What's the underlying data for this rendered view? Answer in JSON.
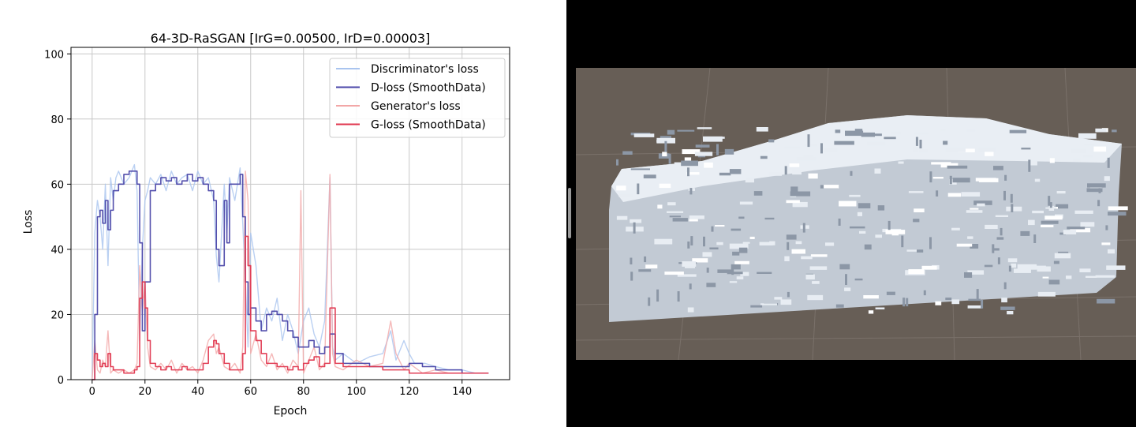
{
  "colors": {
    "discriminator_raw": "#a9c4ef",
    "discriminator_smooth": "#4a46a8",
    "generator_raw": "#f2a7a7",
    "generator_smooth": "#e0374f",
    "grid": "#c8c8c8",
    "viewport_bg": "#675e56",
    "voxel_light": "#e8edf3",
    "voxel_mid": "#b9c2cd",
    "voxel_dark": "#8c97a6"
  },
  "chart_data": {
    "type": "line",
    "title": "64-3D-RaSGAN [IrG=0.00500, IrD=0.00003]",
    "xlabel": "Epoch",
    "ylabel": "Loss",
    "xlim": [
      -8,
      158
    ],
    "ylim": [
      0,
      102
    ],
    "xticks": [
      0,
      20,
      40,
      60,
      80,
      100,
      120,
      140
    ],
    "yticks": [
      0,
      20,
      40,
      60,
      80,
      100
    ],
    "grid": true,
    "legend_position": "top-right",
    "series": [
      {
        "name": "Discriminator's loss",
        "style": "raw",
        "x": [
          0,
          1,
          2,
          3,
          4,
          5,
          6,
          7,
          8,
          9,
          10,
          12,
          14,
          16,
          17,
          18,
          19,
          20,
          21,
          22,
          24,
          26,
          28,
          30,
          32,
          34,
          36,
          38,
          40,
          42,
          44,
          46,
          47,
          48,
          50,
          51,
          52,
          54,
          56,
          57,
          58,
          59,
          60,
          62,
          64,
          66,
          68,
          70,
          72,
          74,
          76,
          78,
          80,
          82,
          84,
          86,
          88,
          90,
          91,
          92,
          95,
          100,
          105,
          110,
          113,
          115,
          118,
          120,
          122,
          126,
          130,
          135,
          140,
          145,
          150
        ],
        "y": [
          0,
          45,
          55,
          50,
          40,
          60,
          35,
          62,
          55,
          62,
          64,
          60,
          62,
          66,
          58,
          12,
          40,
          55,
          58,
          62,
          60,
          63,
          58,
          64,
          60,
          62,
          63,
          58,
          64,
          60,
          62,
          55,
          38,
          30,
          60,
          45,
          62,
          55,
          65,
          48,
          30,
          10,
          45,
          35,
          15,
          22,
          18,
          25,
          12,
          20,
          15,
          8,
          18,
          22,
          14,
          10,
          18,
          62,
          10,
          6,
          8,
          5,
          7,
          8,
          15,
          6,
          12,
          8,
          5,
          5,
          4,
          3,
          3,
          2,
          2
        ]
      },
      {
        "name": "D-loss (SmoothData)",
        "style": "smooth",
        "x": [
          0,
          1,
          2,
          3,
          4,
          5,
          6,
          7,
          8,
          10,
          12,
          14,
          16,
          17,
          18,
          19,
          20,
          22,
          24,
          26,
          28,
          30,
          32,
          34,
          36,
          38,
          40,
          42,
          44,
          46,
          47,
          48,
          50,
          51,
          52,
          54,
          56,
          57,
          58,
          59,
          60,
          62,
          64,
          66,
          68,
          70,
          72,
          74,
          76,
          78,
          80,
          82,
          84,
          86,
          88,
          90,
          92,
          95,
          100,
          105,
          110,
          115,
          120,
          125,
          130,
          135,
          140,
          145,
          150
        ],
        "y": [
          0,
          20,
          50,
          52,
          48,
          55,
          46,
          52,
          58,
          60,
          63,
          64,
          64,
          60,
          42,
          15,
          30,
          58,
          60,
          62,
          61,
          62,
          60,
          61,
          63,
          61,
          62,
          60,
          58,
          55,
          40,
          35,
          55,
          42,
          60,
          60,
          63,
          50,
          30,
          20,
          22,
          18,
          15,
          20,
          21,
          20,
          18,
          15,
          13,
          10,
          10,
          12,
          10,
          8,
          10,
          14,
          8,
          5,
          5,
          4,
          4,
          4,
          5,
          4,
          3,
          3,
          2,
          2,
          2
        ]
      },
      {
        "name": "Generator's loss",
        "style": "raw",
        "x": [
          0,
          1,
          2,
          3,
          4,
          5,
          6,
          7,
          8,
          10,
          12,
          14,
          16,
          17,
          18,
          19,
          20,
          21,
          22,
          24,
          26,
          28,
          30,
          32,
          34,
          36,
          38,
          40,
          42,
          44,
          46,
          47,
          48,
          50,
          52,
          54,
          56,
          57,
          58,
          59,
          60,
          62,
          64,
          66,
          68,
          70,
          72,
          74,
          76,
          78,
          79,
          80,
          82,
          84,
          86,
          88,
          90,
          91,
          92,
          95,
          100,
          105,
          110,
          113,
          115,
          118,
          120,
          125,
          130,
          135,
          140,
          145,
          150
        ],
        "y": [
          0,
          12,
          3,
          2,
          6,
          4,
          15,
          2,
          3,
          2,
          3,
          2,
          3,
          5,
          35,
          20,
          30,
          10,
          4,
          3,
          5,
          3,
          6,
          2,
          5,
          3,
          4,
          2,
          6,
          12,
          14,
          8,
          10,
          4,
          3,
          5,
          2,
          10,
          64,
          55,
          8,
          14,
          6,
          4,
          8,
          3,
          5,
          2,
          6,
          4,
          58,
          2,
          6,
          10,
          3,
          5,
          63,
          8,
          4,
          3,
          6,
          4,
          5,
          18,
          8,
          3,
          5,
          2,
          3,
          2,
          2,
          2,
          2
        ]
      },
      {
        "name": "G-loss (SmoothData)",
        "style": "smooth",
        "x": [
          0,
          1,
          2,
          3,
          4,
          5,
          6,
          7,
          8,
          10,
          12,
          14,
          16,
          17,
          18,
          19,
          20,
          21,
          22,
          24,
          26,
          28,
          30,
          32,
          34,
          36,
          38,
          40,
          42,
          44,
          46,
          47,
          48,
          50,
          52,
          54,
          56,
          57,
          58,
          59,
          60,
          62,
          64,
          66,
          68,
          70,
          72,
          74,
          76,
          78,
          80,
          82,
          84,
          86,
          88,
          90,
          92,
          95,
          100,
          105,
          110,
          115,
          120,
          125,
          130,
          135,
          140,
          145,
          150
        ],
        "y": [
          0,
          8,
          6,
          4,
          5,
          4,
          8,
          4,
          3,
          3,
          2,
          2,
          3,
          4,
          25,
          30,
          22,
          12,
          5,
          4,
          3,
          4,
          3,
          3,
          4,
          3,
          3,
          3,
          5,
          10,
          12,
          11,
          8,
          5,
          3,
          3,
          3,
          8,
          44,
          35,
          15,
          12,
          8,
          5,
          5,
          4,
          4,
          3,
          4,
          3,
          5,
          6,
          7,
          4,
          5,
          22,
          5,
          4,
          4,
          4,
          3,
          3,
          2,
          2,
          2,
          2,
          2,
          2,
          2
        ]
      }
    ]
  },
  "viewport": {
    "content": "3d-voxel-terrain-block",
    "background": "scene-view"
  }
}
